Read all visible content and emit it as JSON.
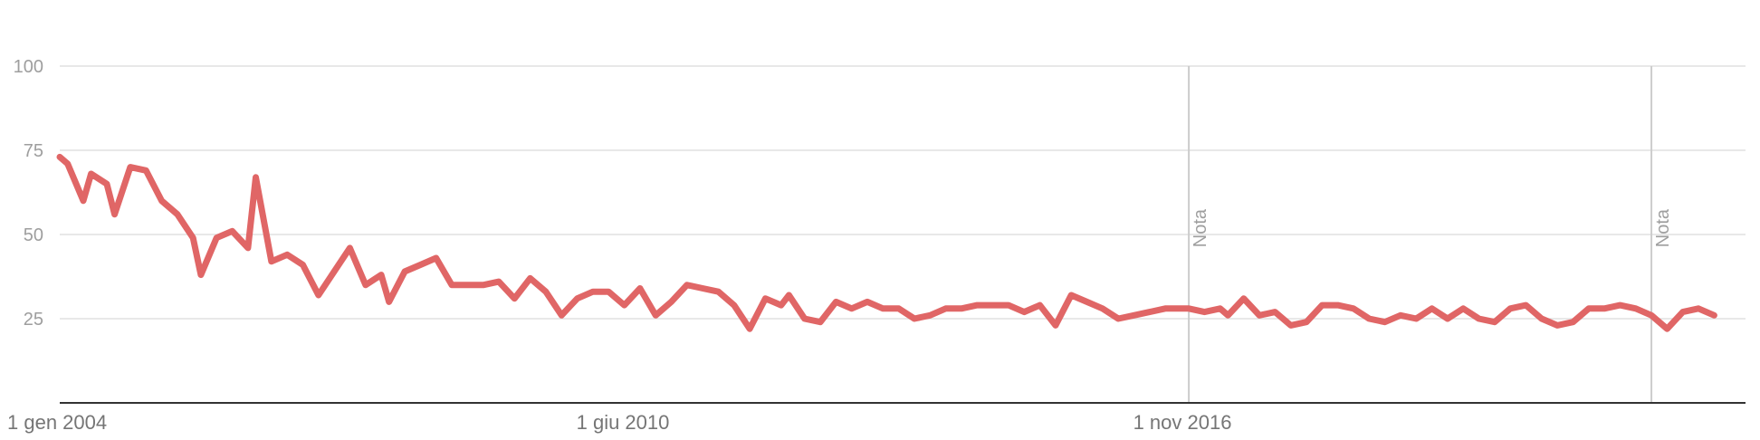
{
  "chart_data": {
    "type": "line",
    "x_ticks": [
      "1 gen 2004",
      "1 giu 2010",
      "1 nov 2016"
    ],
    "y_ticks": [
      25,
      50,
      75,
      100
    ],
    "ylim": [
      0,
      100
    ],
    "xlim": [
      "2004-01",
      "2021-12"
    ],
    "grid": true,
    "notes": [
      {
        "date": "2016-01",
        "label": "Nota"
      },
      {
        "date": "2020-12",
        "label": "Nota"
      }
    ],
    "series": [
      {
        "color": "#e06666",
        "values": [
          {
            "x": "2004-01",
            "y": 73
          },
          {
            "x": "2004-02",
            "y": 71
          },
          {
            "x": "2004-04",
            "y": 60
          },
          {
            "x": "2004-05",
            "y": 68
          },
          {
            "x": "2004-07",
            "y": 65
          },
          {
            "x": "2004-08",
            "y": 56
          },
          {
            "x": "2004-10",
            "y": 70
          },
          {
            "x": "2004-12",
            "y": 69
          },
          {
            "x": "2005-02",
            "y": 60
          },
          {
            "x": "2005-04",
            "y": 56
          },
          {
            "x": "2005-06",
            "y": 49
          },
          {
            "x": "2005-07",
            "y": 38
          },
          {
            "x": "2005-09",
            "y": 49
          },
          {
            "x": "2005-11",
            "y": 51
          },
          {
            "x": "2006-01",
            "y": 46
          },
          {
            "x": "2006-02",
            "y": 67
          },
          {
            "x": "2006-04",
            "y": 42
          },
          {
            "x": "2006-06",
            "y": 44
          },
          {
            "x": "2006-08",
            "y": 41
          },
          {
            "x": "2006-10",
            "y": 32
          },
          {
            "x": "2006-12",
            "y": 39
          },
          {
            "x": "2007-02",
            "y": 46
          },
          {
            "x": "2007-04",
            "y": 35
          },
          {
            "x": "2007-06",
            "y": 38
          },
          {
            "x": "2007-07",
            "y": 30
          },
          {
            "x": "2007-09",
            "y": 39
          },
          {
            "x": "2007-11",
            "y": 41
          },
          {
            "x": "2008-01",
            "y": 43
          },
          {
            "x": "2008-03",
            "y": 35
          },
          {
            "x": "2008-05",
            "y": 35
          },
          {
            "x": "2008-07",
            "y": 35
          },
          {
            "x": "2008-09",
            "y": 36
          },
          {
            "x": "2008-11",
            "y": 31
          },
          {
            "x": "2009-01",
            "y": 37
          },
          {
            "x": "2009-03",
            "y": 33
          },
          {
            "x": "2009-05",
            "y": 26
          },
          {
            "x": "2009-07",
            "y": 31
          },
          {
            "x": "2009-09",
            "y": 33
          },
          {
            "x": "2009-11",
            "y": 33
          },
          {
            "x": "2010-01",
            "y": 29
          },
          {
            "x": "2010-03",
            "y": 34
          },
          {
            "x": "2010-05",
            "y": 26
          },
          {
            "x": "2010-07",
            "y": 30
          },
          {
            "x": "2010-09",
            "y": 35
          },
          {
            "x": "2010-11",
            "y": 34
          },
          {
            "x": "2011-01",
            "y": 33
          },
          {
            "x": "2011-03",
            "y": 29
          },
          {
            "x": "2011-05",
            "y": 22
          },
          {
            "x": "2011-07",
            "y": 31
          },
          {
            "x": "2011-09",
            "y": 29
          },
          {
            "x": "2011-10",
            "y": 32
          },
          {
            "x": "2011-12",
            "y": 25
          },
          {
            "x": "2012-02",
            "y": 24
          },
          {
            "x": "2012-04",
            "y": 30
          },
          {
            "x": "2012-06",
            "y": 28
          },
          {
            "x": "2012-08",
            "y": 30
          },
          {
            "x": "2012-10",
            "y": 28
          },
          {
            "x": "2012-12",
            "y": 28
          },
          {
            "x": "2013-02",
            "y": 25
          },
          {
            "x": "2013-04",
            "y": 26
          },
          {
            "x": "2013-06",
            "y": 28
          },
          {
            "x": "2013-08",
            "y": 28
          },
          {
            "x": "2013-10",
            "y": 29
          },
          {
            "x": "2013-12",
            "y": 29
          },
          {
            "x": "2014-02",
            "y": 29
          },
          {
            "x": "2014-04",
            "y": 27
          },
          {
            "x": "2014-06",
            "y": 29
          },
          {
            "x": "2014-08",
            "y": 23
          },
          {
            "x": "2014-10",
            "y": 32
          },
          {
            "x": "2014-12",
            "y": 30
          },
          {
            "x": "2015-02",
            "y": 28
          },
          {
            "x": "2015-04",
            "y": 25
          },
          {
            "x": "2015-06",
            "y": 26
          },
          {
            "x": "2015-08",
            "y": 27
          },
          {
            "x": "2015-10",
            "y": 28
          },
          {
            "x": "2015-12",
            "y": 28
          },
          {
            "x": "2016-01",
            "y": 28
          },
          {
            "x": "2016-03",
            "y": 27
          },
          {
            "x": "2016-05",
            "y": 28
          },
          {
            "x": "2016-06",
            "y": 26
          },
          {
            "x": "2016-08",
            "y": 31
          },
          {
            "x": "2016-10",
            "y": 26
          },
          {
            "x": "2016-12",
            "y": 27
          },
          {
            "x": "2017-02",
            "y": 23
          },
          {
            "x": "2017-04",
            "y": 24
          },
          {
            "x": "2017-06",
            "y": 29
          },
          {
            "x": "2017-08",
            "y": 29
          },
          {
            "x": "2017-10",
            "y": 28
          },
          {
            "x": "2017-12",
            "y": 25
          },
          {
            "x": "2018-02",
            "y": 24
          },
          {
            "x": "2018-04",
            "y": 26
          },
          {
            "x": "2018-06",
            "y": 25
          },
          {
            "x": "2018-08",
            "y": 28
          },
          {
            "x": "2018-10",
            "y": 25
          },
          {
            "x": "2018-12",
            "y": 28
          },
          {
            "x": "2019-02",
            "y": 25
          },
          {
            "x": "2019-04",
            "y": 24
          },
          {
            "x": "2019-06",
            "y": 28
          },
          {
            "x": "2019-08",
            "y": 29
          },
          {
            "x": "2019-10",
            "y": 25
          },
          {
            "x": "2019-12",
            "y": 23
          },
          {
            "x": "2020-02",
            "y": 24
          },
          {
            "x": "2020-04",
            "y": 28
          },
          {
            "x": "2020-06",
            "y": 28
          },
          {
            "x": "2020-08",
            "y": 29
          },
          {
            "x": "2020-10",
            "y": 28
          },
          {
            "x": "2020-12",
            "y": 26
          },
          {
            "x": "2021-02",
            "y": 22
          },
          {
            "x": "2021-04",
            "y": 27
          },
          {
            "x": "2021-06",
            "y": 28
          },
          {
            "x": "2021-08",
            "y": 26
          }
        ]
      }
    ]
  }
}
